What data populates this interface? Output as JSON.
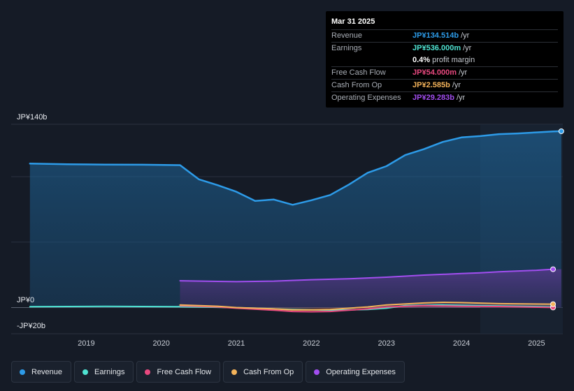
{
  "colors": {
    "revenue": "#2d9be8",
    "earnings": "#4fe3d2",
    "free_cash_flow": "#e8497f",
    "cash_from_op": "#f4b35a",
    "operating_expenses": "#a24ef0"
  },
  "tooltip": {
    "date": "Mar 31 2025",
    "rows": [
      {
        "key": "Revenue",
        "value": "JP¥134.514b",
        "unit": "/yr",
        "color": "#2d9be8"
      },
      {
        "key": "Earnings",
        "value": "JP¥536.000m",
        "unit": "/yr",
        "color": "#4fe3d2"
      },
      {
        "key": "",
        "value": "0.4%",
        "unit": "profit margin",
        "color": "#ffffff"
      },
      {
        "key": "Free Cash Flow",
        "value": "JP¥54.000m",
        "unit": "/yr",
        "color": "#e8497f"
      },
      {
        "key": "Cash From Op",
        "value": "JP¥2.585b",
        "unit": "/yr",
        "color": "#f4b35a"
      },
      {
        "key": "Operating Expenses",
        "value": "JP¥29.283b",
        "unit": "/yr",
        "color": "#a24ef0"
      }
    ]
  },
  "legend": [
    {
      "label": "Revenue",
      "color": "#2d9be8"
    },
    {
      "label": "Earnings",
      "color": "#4fe3d2"
    },
    {
      "label": "Free Cash Flow",
      "color": "#e8497f"
    },
    {
      "label": "Cash From Op",
      "color": "#f4b35a"
    },
    {
      "label": "Operating Expenses",
      "color": "#a24ef0"
    }
  ],
  "chart_data": {
    "type": "area",
    "y_label_top": "JP¥140b",
    "y_label_zero": "JP¥0",
    "y_label_bottom": "-JP¥20b",
    "ylim": [
      -20,
      140
    ],
    "xlim": [
      2018.0,
      2025.35
    ],
    "x_ticks": [
      2019,
      2020,
      2021,
      2022,
      2023,
      2024,
      2025
    ],
    "x_tick_labels": [
      "2019",
      "2020",
      "2021",
      "2022",
      "2023",
      "2024",
      "2025"
    ],
    "highlight_from": 2024.25,
    "series": [
      {
        "name": "Revenue",
        "key": "revenue",
        "points": [
          [
            2018.25,
            110
          ],
          [
            2018.75,
            109.5
          ],
          [
            2019.25,
            109.2
          ],
          [
            2019.75,
            109.1
          ],
          [
            2020.25,
            108.8
          ],
          [
            2020.5,
            98
          ],
          [
            2020.75,
            93.5
          ],
          [
            2021.0,
            88.5
          ],
          [
            2021.25,
            81.5
          ],
          [
            2021.5,
            82.5
          ],
          [
            2021.75,
            78.5
          ],
          [
            2022.0,
            82
          ],
          [
            2022.25,
            86
          ],
          [
            2022.5,
            94
          ],
          [
            2022.75,
            103
          ],
          [
            2023.0,
            108
          ],
          [
            2023.25,
            116.5
          ],
          [
            2023.5,
            121
          ],
          [
            2023.75,
            126.5
          ],
          [
            2024.0,
            130
          ],
          [
            2024.25,
            131
          ],
          [
            2024.5,
            132.5
          ],
          [
            2024.75,
            133
          ],
          [
            2025.0,
            133.8
          ],
          [
            2025.22,
            134.5
          ]
        ]
      },
      {
        "name": "Earnings",
        "key": "earnings",
        "points": [
          [
            2018.25,
            0.7
          ],
          [
            2018.75,
            0.8
          ],
          [
            2019.25,
            0.9
          ],
          [
            2019.75,
            0.8
          ],
          [
            2020.25,
            0.7
          ],
          [
            2020.75,
            0.2
          ],
          [
            2021.25,
            -0.5
          ],
          [
            2021.75,
            -1.5
          ],
          [
            2022.25,
            -2.0
          ],
          [
            2022.75,
            -1.5
          ],
          [
            2023.0,
            -0.5
          ],
          [
            2023.25,
            1.5
          ],
          [
            2023.75,
            2.0
          ],
          [
            2024.25,
            1.5
          ],
          [
            2024.75,
            1.0
          ],
          [
            2025.22,
            0.5
          ]
        ]
      },
      {
        "name": "Free Cash Flow",
        "key": "free_cash_flow",
        "points": [
          [
            2020.25,
            1.5
          ],
          [
            2020.75,
            0.5
          ],
          [
            2021.0,
            -0.5
          ],
          [
            2021.5,
            -2.0
          ],
          [
            2021.75,
            -3.0
          ],
          [
            2022.0,
            -3.2
          ],
          [
            2022.25,
            -3.0
          ],
          [
            2022.5,
            -2.0
          ],
          [
            2022.75,
            -1.0
          ],
          [
            2023.0,
            0.5
          ],
          [
            2023.5,
            1.5
          ],
          [
            2024.0,
            1.0
          ],
          [
            2024.5,
            0.8
          ],
          [
            2025.22,
            0.05
          ]
        ]
      },
      {
        "name": "Cash From Op",
        "key": "cash_from_op",
        "points": [
          [
            2020.25,
            2.0
          ],
          [
            2020.75,
            1.0
          ],
          [
            2021.0,
            0
          ],
          [
            2021.5,
            -1.0
          ],
          [
            2021.75,
            -1.8
          ],
          [
            2022.0,
            -1.8
          ],
          [
            2022.25,
            -1.5
          ],
          [
            2022.5,
            -0.5
          ],
          [
            2022.75,
            0.5
          ],
          [
            2023.0,
            2.0
          ],
          [
            2023.5,
            3.5
          ],
          [
            2023.75,
            4.0
          ],
          [
            2024.0,
            3.8
          ],
          [
            2024.5,
            3.0
          ],
          [
            2025.22,
            2.6
          ]
        ]
      },
      {
        "name": "Operating Expenses",
        "key": "operating_expenses",
        "points": [
          [
            2020.25,
            20.5
          ],
          [
            2020.75,
            20.0
          ],
          [
            2021.0,
            19.8
          ],
          [
            2021.5,
            20.2
          ],
          [
            2022.0,
            21.3
          ],
          [
            2022.5,
            22.0
          ],
          [
            2023.0,
            23.2
          ],
          [
            2023.5,
            24.8
          ],
          [
            2024.0,
            26.0
          ],
          [
            2024.25,
            26.5
          ],
          [
            2024.5,
            27.3
          ],
          [
            2025.0,
            28.5
          ],
          [
            2025.22,
            29.3
          ]
        ]
      }
    ]
  }
}
